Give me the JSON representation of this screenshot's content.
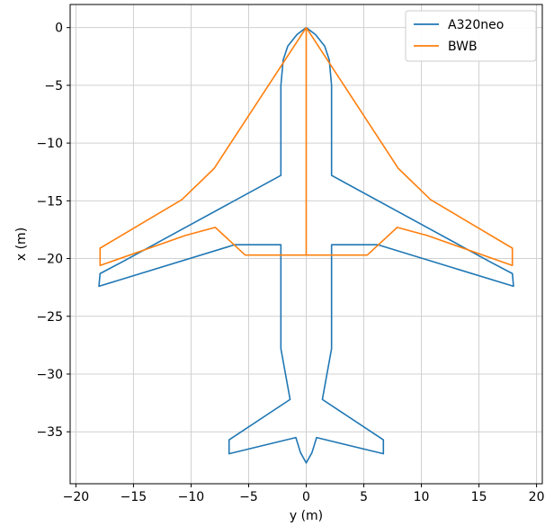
{
  "chart_data": {
    "type": "line",
    "title": "",
    "xlabel": "y (m)",
    "ylabel": "x (m)",
    "xlim": [
      -20.5,
      20.5
    ],
    "ylim": [
      -39.5,
      2.0
    ],
    "xticks": [
      -20,
      -15,
      -10,
      -5,
      0,
      5,
      10,
      15,
      20
    ],
    "yticks": [
      0,
      -5,
      -10,
      -15,
      -20,
      -25,
      -30,
      -35
    ],
    "xtick_labels": [
      "−20",
      "−15",
      "−10",
      "−5",
      "0",
      "5",
      "10",
      "15",
      "20"
    ],
    "ytick_labels": [
      "0",
      "−5",
      "−10",
      "−15",
      "−20",
      "−25",
      "−30",
      "−35"
    ],
    "grid": true,
    "legend_position": "top-right",
    "series": [
      {
        "name": "A320neo",
        "color": "#1f77b4",
        "points": [
          [
            0.0,
            0.0
          ],
          [
            0.8,
            -0.6
          ],
          [
            1.6,
            -1.6
          ],
          [
            2.0,
            -2.8
          ],
          [
            2.2,
            -5.0
          ],
          [
            2.2,
            -12.8
          ],
          [
            16.0,
            -20.3
          ],
          [
            17.9,
            -21.3
          ],
          [
            18.0,
            -22.4
          ],
          [
            6.2,
            -18.8
          ],
          [
            2.2,
            -18.8
          ],
          [
            2.2,
            -27.8
          ],
          [
            1.4,
            -32.2
          ],
          [
            6.7,
            -35.7
          ],
          [
            6.7,
            -36.9
          ],
          [
            0.9,
            -35.5
          ],
          [
            0.5,
            -36.8
          ],
          [
            0.0,
            -37.7
          ],
          [
            -0.5,
            -36.8
          ],
          [
            -0.9,
            -35.5
          ],
          [
            -6.7,
            -36.9
          ],
          [
            -6.7,
            -35.7
          ],
          [
            -1.4,
            -32.2
          ],
          [
            -2.2,
            -27.8
          ],
          [
            -2.2,
            -18.8
          ],
          [
            -6.2,
            -18.8
          ],
          [
            -18.0,
            -22.4
          ],
          [
            -17.9,
            -21.3
          ],
          [
            -16.0,
            -20.3
          ],
          [
            -2.2,
            -12.8
          ],
          [
            -2.2,
            -5.0
          ],
          [
            -2.0,
            -2.8
          ],
          [
            -1.6,
            -1.6
          ],
          [
            -0.8,
            -0.6
          ],
          [
            0.0,
            0.0
          ]
        ]
      },
      {
        "name": "BWB",
        "color": "#ff7f0e",
        "points": [
          [
            0.0,
            0.0
          ],
          [
            8.0,
            -12.2
          ],
          [
            10.8,
            -14.9
          ],
          [
            17.9,
            -19.1
          ],
          [
            17.9,
            -20.6
          ],
          [
            10.5,
            -18.0
          ],
          [
            7.9,
            -17.3
          ],
          [
            5.3,
            -19.7
          ],
          [
            0.0,
            -19.7
          ],
          [
            0.0,
            0.0
          ],
          [
            -8.0,
            -12.2
          ],
          [
            -10.8,
            -14.9
          ],
          [
            -17.9,
            -19.1
          ],
          [
            -17.9,
            -20.6
          ],
          [
            -10.5,
            -18.0
          ],
          [
            -7.9,
            -17.3
          ],
          [
            -5.3,
            -19.7
          ],
          [
            0.0,
            -19.7
          ]
        ]
      }
    ]
  }
}
